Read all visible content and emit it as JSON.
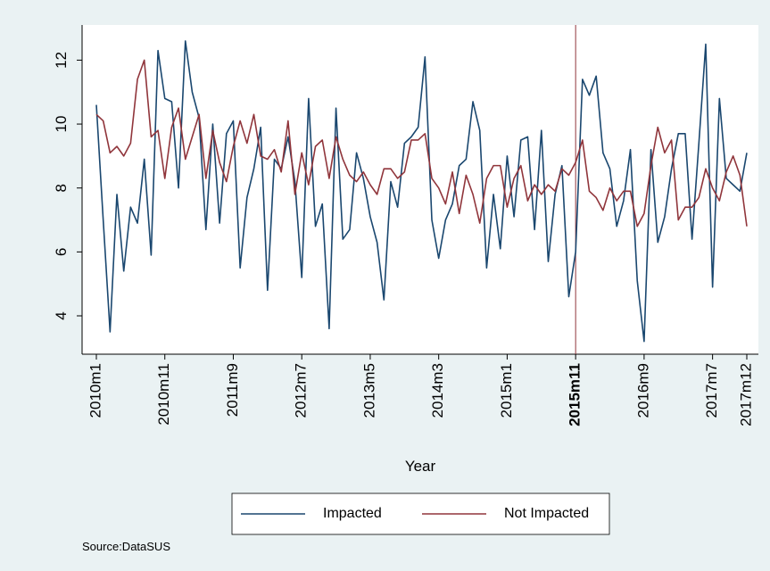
{
  "chart_data": {
    "type": "line",
    "categories": [
      "2010m1",
      null,
      null,
      null,
      null,
      null,
      null,
      null,
      null,
      null,
      "2010m11",
      null,
      null,
      null,
      null,
      null,
      null,
      null,
      null,
      null,
      "2011m9",
      null,
      null,
      null,
      null,
      null,
      null,
      null,
      null,
      null,
      "2012m7",
      null,
      null,
      null,
      null,
      null,
      null,
      null,
      null,
      null,
      "2013m5",
      null,
      null,
      null,
      null,
      null,
      null,
      null,
      null,
      null,
      "2014m3",
      null,
      null,
      null,
      null,
      null,
      null,
      null,
      null,
      null,
      "2015m1",
      null,
      null,
      null,
      null,
      null,
      null,
      null,
      null,
      null,
      "2015m11",
      null,
      null,
      null,
      null,
      null,
      null,
      null,
      null,
      null,
      "2016m9",
      null,
      null,
      null,
      null,
      null,
      null,
      null,
      null,
      null,
      "2017m7",
      null,
      null,
      null,
      null,
      "2017m12"
    ],
    "series": [
      {
        "name": "Impacted",
        "color": "#1a476f",
        "values": [
          10.6,
          7.0,
          3.5,
          7.8,
          5.4,
          7.4,
          6.9,
          8.9,
          5.9,
          12.3,
          10.8,
          10.7,
          8.0,
          12.6,
          11.0,
          10.2,
          6.7,
          10.0,
          6.9,
          9.7,
          10.1,
          5.5,
          7.7,
          8.6,
          9.9,
          4.8,
          8.9,
          8.6,
          9.6,
          8.2,
          5.2,
          10.8,
          6.8,
          7.5,
          3.6,
          10.5,
          6.4,
          6.7,
          9.1,
          8.3,
          7.1,
          6.3,
          4.5,
          8.2,
          7.4,
          9.4,
          9.6,
          9.9,
          12.1,
          7.0,
          5.8,
          7.0,
          7.5,
          8.7,
          8.9,
          10.7,
          9.8,
          5.5,
          7.8,
          6.1,
          9.0,
          7.1,
          9.5,
          9.6,
          6.7,
          9.8,
          5.7,
          7.8,
          8.7,
          4.6,
          6.0,
          11.4,
          10.9,
          11.5,
          9.1,
          8.6,
          6.8,
          7.6,
          9.2,
          5.1,
          3.2,
          9.2,
          6.3,
          7.1,
          8.6,
          9.7,
          9.7,
          6.4,
          9.4,
          12.5,
          4.9,
          10.8,
          8.3,
          8.1,
          7.9,
          9.1
        ]
      },
      {
        "name": "Not Impacted",
        "color": "#90353b",
        "values": [
          10.3,
          10.1,
          9.1,
          9.3,
          9.0,
          9.4,
          11.4,
          12.0,
          9.6,
          9.8,
          8.3,
          9.9,
          10.5,
          8.9,
          9.6,
          10.3,
          8.3,
          9.8,
          8.8,
          8.2,
          9.3,
          10.1,
          9.4,
          10.3,
          9.0,
          8.9,
          9.2,
          8.5,
          10.1,
          7.8,
          9.1,
          8.1,
          9.3,
          9.5,
          8.3,
          9.6,
          8.9,
          8.4,
          8.2,
          8.5,
          8.1,
          7.8,
          8.6,
          8.6,
          8.3,
          8.5,
          9.5,
          9.5,
          9.7,
          8.3,
          8.0,
          7.5,
          8.5,
          7.2,
          8.4,
          7.8,
          6.9,
          8.3,
          8.7,
          8.7,
          7.4,
          8.3,
          8.7,
          7.6,
          8.1,
          7.8,
          8.1,
          7.9,
          8.6,
          8.4,
          8.8,
          9.5,
          7.9,
          7.7,
          7.3,
          8.0,
          7.6,
          7.9,
          7.9,
          6.8,
          7.2,
          8.7,
          9.9,
          9.1,
          9.5,
          7.0,
          7.4,
          7.4,
          7.7,
          8.6,
          8.0,
          7.6,
          8.5,
          9.0,
          8.4,
          6.8
        ]
      }
    ],
    "xlabel": "Year",
    "note": "Source:DataSUS",
    "xline": "2015m11",
    "xline_color": "#90353b",
    "ylim": [
      2.8,
      13.1
    ],
    "yticks": [
      4,
      6,
      8,
      10,
      12
    ],
    "grid": false
  }
}
